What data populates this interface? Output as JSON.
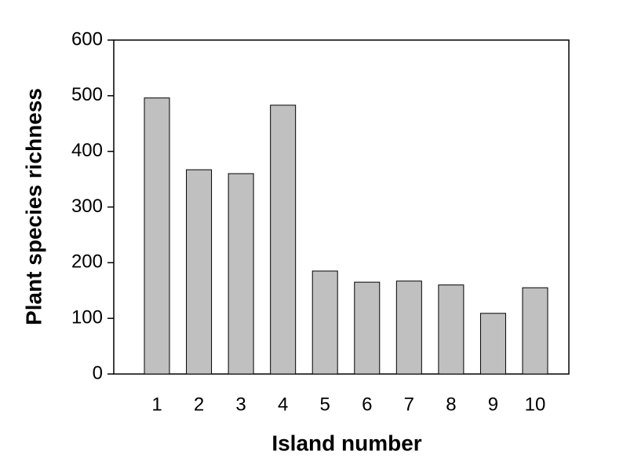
{
  "chart_data": {
    "type": "bar",
    "xlabel": "Island number",
    "ylabel": "Plant species richness",
    "categories": [
      "1",
      "2",
      "3",
      "4",
      "5",
      "6",
      "7",
      "8",
      "9",
      "10"
    ],
    "values": [
      496,
      367,
      360,
      483,
      185,
      165,
      167,
      160,
      109,
      155
    ],
    "color": "#c0c0c0",
    "ylim": [
      0,
      600
    ],
    "yticks": [
      0,
      100,
      200,
      300,
      400,
      500,
      600
    ]
  }
}
